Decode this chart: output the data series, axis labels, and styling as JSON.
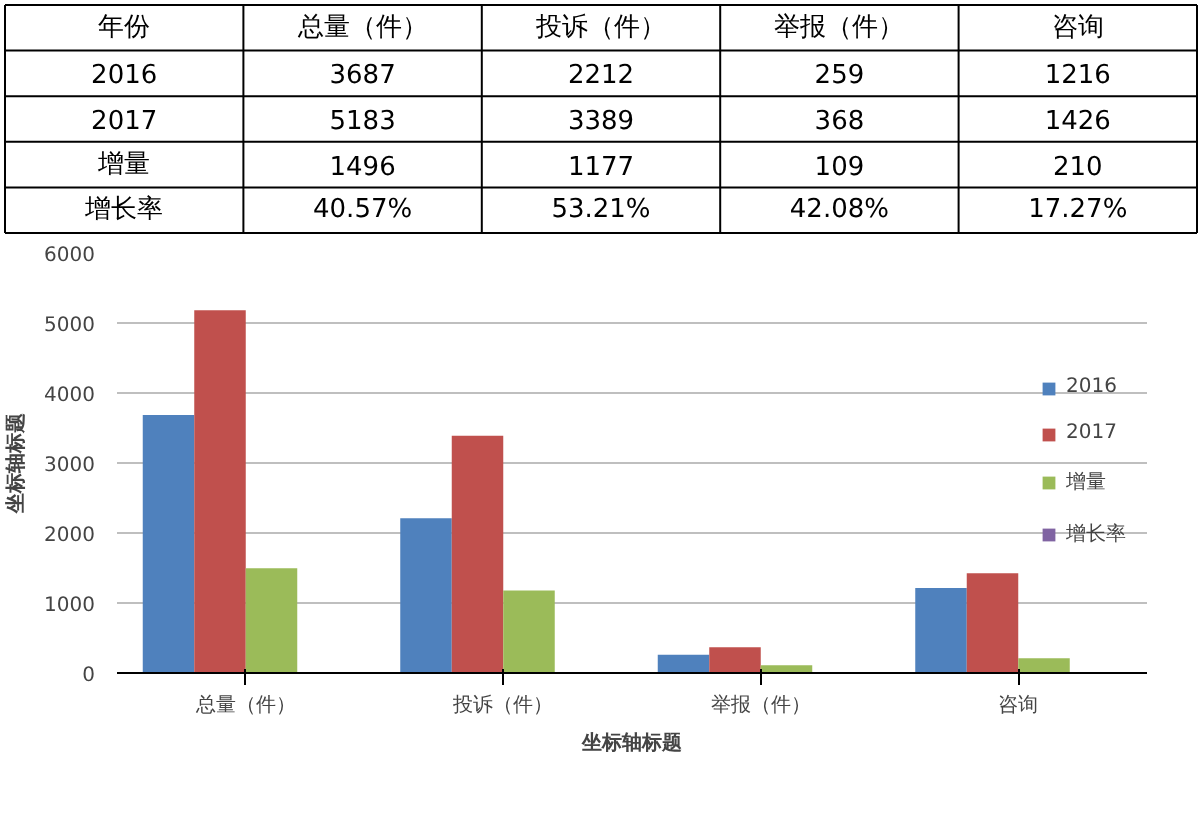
{
  "chart_data": {
    "type": "bar",
    "xlabel": "坐标轴标题",
    "ylabel": "坐标轴标题",
    "annotations": [
      "年份"
    ],
    "categories": [
      "总量（件）",
      "投诉（件）",
      "举报（件）",
      "咨询"
    ],
    "series": [
      {
        "name": "2016",
        "color": "#4f81bd",
        "values": [
          3687,
          2212,
          259,
          1216
        ],
        "value_labels": [
          "3687",
          "2212",
          "259",
          "1216"
        ]
      },
      {
        "name": "2017",
        "color": "#c0504d",
        "values": [
          5183,
          3389,
          368,
          1426
        ],
        "value_labels": [
          "5183",
          "3389",
          "368",
          "1426"
        ]
      },
      {
        "name": "增量",
        "color": "#9bbb59",
        "values": [
          1496,
          1177,
          109,
          210
        ],
        "value_labels": [
          "1496",
          "1177",
          "109",
          "210"
        ]
      },
      {
        "name": "增长率",
        "color": "#8064a2",
        "values": [
          0.4057,
          0.5321,
          0.4208,
          0.1727
        ],
        "value_labels": [
          "40.57%",
          "53.21%",
          "42.08%",
          "17.27%"
        ]
      }
    ],
    "ylim": [
      0,
      6000
    ],
    "yticks": [
      0,
      1000,
      2000,
      3000,
      4000,
      5000,
      6000
    ],
    "grid": "y",
    "legend": "right"
  }
}
